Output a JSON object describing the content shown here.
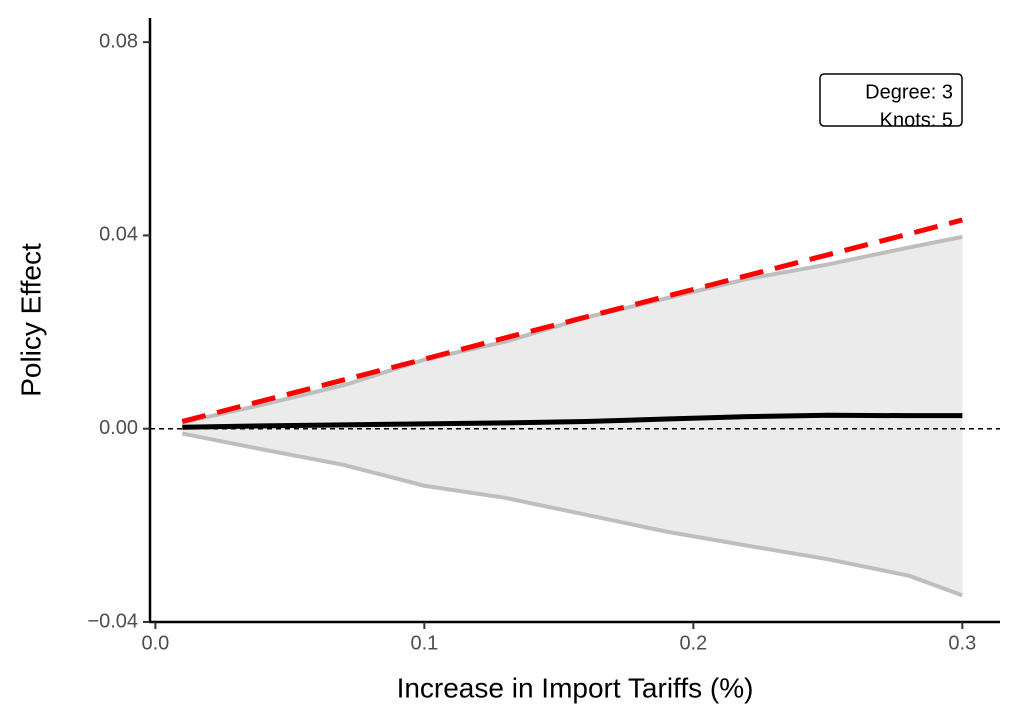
{
  "chart_data": {
    "type": "line",
    "x_label": "Increase in Import Tariffs (%)",
    "y_label": "Policy Effect",
    "annotations": [
      "Degree: 3",
      "Knots: 5"
    ],
    "x": [
      0.01,
      0.04,
      0.07,
      0.1,
      0.13,
      0.16,
      0.19,
      0.22,
      0.25,
      0.28,
      0.3
    ],
    "band": {
      "color": "#ebebeb",
      "line_color": "#bebebe",
      "upper": [
        0.0013,
        0.005,
        0.009,
        0.0143,
        0.018,
        0.023,
        0.027,
        0.031,
        0.034,
        0.0375,
        0.0397
      ],
      "lower": [
        -0.001,
        -0.0043,
        -0.0075,
        -0.0118,
        -0.0143,
        -0.0178,
        -0.0213,
        -0.0242,
        -0.027,
        -0.0304,
        -0.0345
      ]
    },
    "series": [
      {
        "color": "#ff0000",
        "dashed": true,
        "values": [
          0.0015,
          0.0058,
          0.0101,
          0.0144,
          0.0188,
          0.0231,
          0.0274,
          0.0317,
          0.036,
          0.0403,
          0.0432
        ]
      },
      {
        "color": "#000000",
        "dashed": false,
        "values": [
          0.0003,
          0.0006,
          0.0008,
          0.001,
          0.0012,
          0.0015,
          0.002,
          0.0025,
          0.0028,
          0.0027,
          0.0027
        ]
      }
    ],
    "hline": 0,
    "xlim": [
      -0.002,
      0.314
    ],
    "ylim": [
      -0.04,
      0.085
    ],
    "xticks": [
      {
        "value": 0,
        "label": "0.0"
      },
      0.1,
      0.2,
      0.3
    ],
    "yticks": [
      {
        "value": -0.04,
        "label": "−0.04"
      },
      {
        "value": 0,
        "label": "0.00"
      },
      0.04,
      0.08
    ]
  }
}
